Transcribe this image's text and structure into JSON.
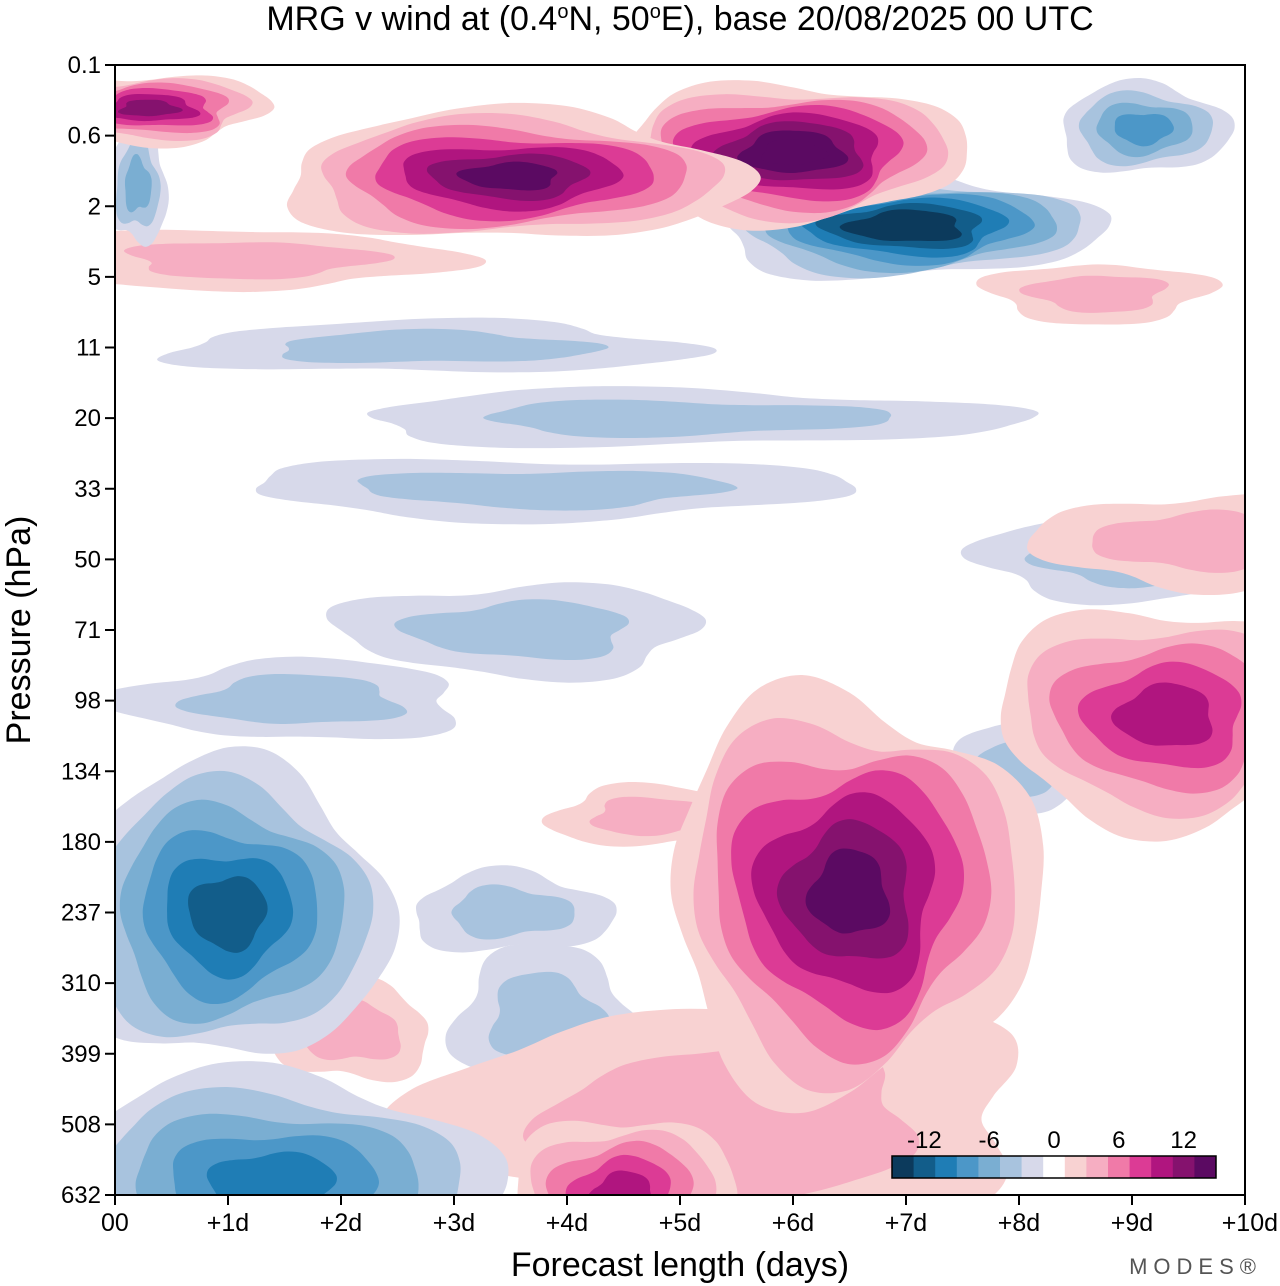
{
  "chart_data": {
    "type": "heatmap",
    "title": "MRG v wind at (0.4°N, 50°E),  base 20/08/2025  00 UTC",
    "title_parts": {
      "prefix": "MRG v wind at (0.4",
      "deg1": "o",
      "mid": "N, 50",
      "deg2": "o",
      "suffix": "E),  base 20/08/2025  00 UTC"
    },
    "xlabel": "Forecast length (days)",
    "ylabel": "Pressure (hPa)",
    "x_ticks": [
      "00",
      "+1d",
      "+2d",
      "+3d",
      "+4d",
      "+5d",
      "+6d",
      "+7d",
      "+8d",
      "+9d",
      "+10d"
    ],
    "xlim": [
      0,
      10
    ],
    "y_ticks": [
      "0.1",
      "0.6",
      "2",
      "5",
      "11",
      "20",
      "33",
      "50",
      "71",
      "98",
      "134",
      "180",
      "237",
      "310",
      "399",
      "508",
      "632"
    ],
    "yscale": "pressure (top 0.1 hPa, bottom 632 hPa)",
    "colorbar": {
      "tick_labels": [
        "-12",
        "-6",
        "0",
        "6",
        "12"
      ],
      "levels": [
        -15,
        -13,
        -11,
        -9,
        -7,
        -5,
        -3,
        -1,
        1,
        3,
        5,
        7,
        9,
        11,
        13,
        15
      ],
      "colors": [
        "#0c3a5c",
        "#125d8a",
        "#1f7db5",
        "#4c97c8",
        "#7aaed2",
        "#a8c3de",
        "#d7d9ea",
        "#ffffff",
        "#f8d2d2",
        "#f6aec2",
        "#f07aa8",
        "#dc3b95",
        "#b0157f",
        "#85126e",
        "#5b0a62"
      ]
    },
    "features": [
      {
        "name": "upper-negative-core",
        "x": 7.0,
        "p": 2.6,
        "v": -14
      },
      {
        "name": "upper-positive-core-a",
        "x": 6.0,
        "p": 0.8,
        "v": 14
      },
      {
        "name": "upper-positive-core-b",
        "x": 3.5,
        "p": 1.2,
        "v": 12
      },
      {
        "name": "upper-positive-core-c",
        "x": 0.3,
        "p": 0.3,
        "v": 10
      },
      {
        "name": "upper-negative-right",
        "x": 9.1,
        "p": 0.5,
        "v": -6
      },
      {
        "name": "mid-positive-core",
        "x": 6.5,
        "p": 220,
        "v": 13
      },
      {
        "name": "mid-positive-right",
        "x": 9.3,
        "p": 105,
        "v": 9
      },
      {
        "name": "lower-negative-left-a",
        "x": 1.0,
        "p": 237,
        "v": -10
      },
      {
        "name": "lower-negative-left-b",
        "x": 1.4,
        "p": 610,
        "v": -8
      },
      {
        "name": "lower-positive-bottom",
        "x": 4.5,
        "p": 632,
        "v": 8
      }
    ]
  },
  "brand": "MODES®"
}
